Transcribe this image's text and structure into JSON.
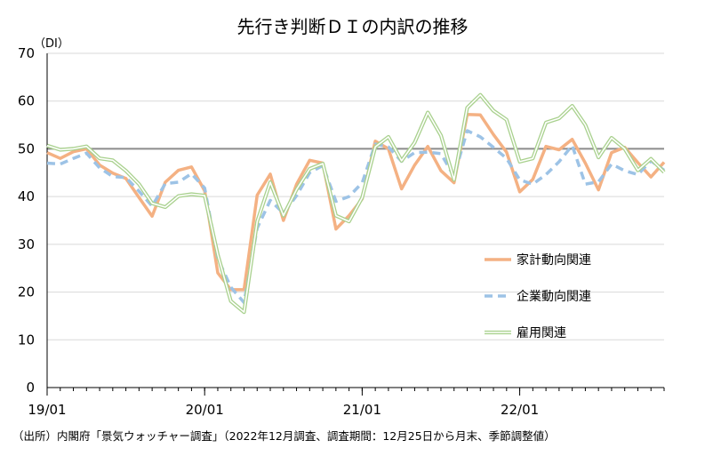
{
  "chart_data": {
    "type": "line",
    "title": "先行き判断ＤＩの内訳の推移",
    "y_unit_label": "（DI）",
    "ylim": [
      0,
      70
    ],
    "yticks": [
      0,
      10,
      20,
      30,
      40,
      50,
      60,
      70
    ],
    "x_tick_labels": [
      "19/01",
      "20/01",
      "21/01",
      "22/01"
    ],
    "x_tick_months": [
      0,
      12,
      24,
      36
    ],
    "x_range_months": [
      0,
      47
    ],
    "reference_line": {
      "y": 50,
      "color": "#8c8c8c"
    },
    "grid": true,
    "legend_position": "right-center",
    "series": [
      {
        "name": "家計動向関連",
        "color": "#f4b183",
        "style": "solid",
        "values": [
          49.2,
          48.0,
          49.4,
          50.0,
          46.6,
          44.9,
          43.8,
          39.8,
          35.9,
          43.0,
          45.5,
          46.2,
          41.2,
          24.0,
          20.5,
          20.5,
          40.3,
          44.7,
          35.0,
          42.6,
          47.6,
          47.0,
          33.2,
          36.0,
          39.5,
          51.6,
          50.0,
          41.6,
          46.6,
          50.5,
          45.4,
          42.9,
          57.2,
          57.1,
          53.0,
          49.3,
          41.0,
          43.6,
          50.5,
          49.8,
          52.0,
          47.0,
          41.4,
          49.2,
          50.3,
          47.1,
          44.1,
          47.2
        ]
      },
      {
        "name": "企業動向関連",
        "color": "#9dc3e6",
        "style": "dashed",
        "values": [
          47.0,
          46.8,
          48.0,
          49.1,
          46.0,
          44.2,
          44.0,
          41.1,
          38.0,
          42.7,
          43.0,
          44.8,
          41.8,
          27.0,
          21.0,
          17.8,
          33.4,
          39.2,
          36.5,
          40.2,
          45.0,
          46.5,
          39.0,
          40.0,
          42.9,
          51.0,
          50.4,
          47.4,
          49.2,
          49.3,
          49.0,
          44.2,
          53.8,
          52.5,
          50.3,
          48.0,
          43.5,
          42.6,
          44.6,
          47.3,
          50.7,
          42.6,
          43.1,
          46.8,
          45.4,
          44.6,
          47.5,
          45.5
        ]
      },
      {
        "name": "雇用関連",
        "color": "#a9d18e",
        "style": "solid-thin",
        "values": [
          50.7,
          49.8,
          50.0,
          50.5,
          48.0,
          47.6,
          45.4,
          42.6,
          38.6,
          37.8,
          40.1,
          40.5,
          40.2,
          27.8,
          18.1,
          15.8,
          34.8,
          43.0,
          36.0,
          41.5,
          45.8,
          46.9,
          36.0,
          34.8,
          39.8,
          50.4,
          52.5,
          47.5,
          51.3,
          57.6,
          52.8,
          43.5,
          58.6,
          61.3,
          58.0,
          56.1,
          47.3,
          48.0,
          55.5,
          56.4,
          59.0,
          55.0,
          48.2,
          52.3,
          50.0,
          45.5,
          47.9,
          45.1
        ]
      }
    ]
  },
  "footer": {
    "source_note": "（出所）内閣府「景気ウォッチャー調査」（2022年12月調査、調査期間：12月25日から月末、季節調整値）"
  }
}
